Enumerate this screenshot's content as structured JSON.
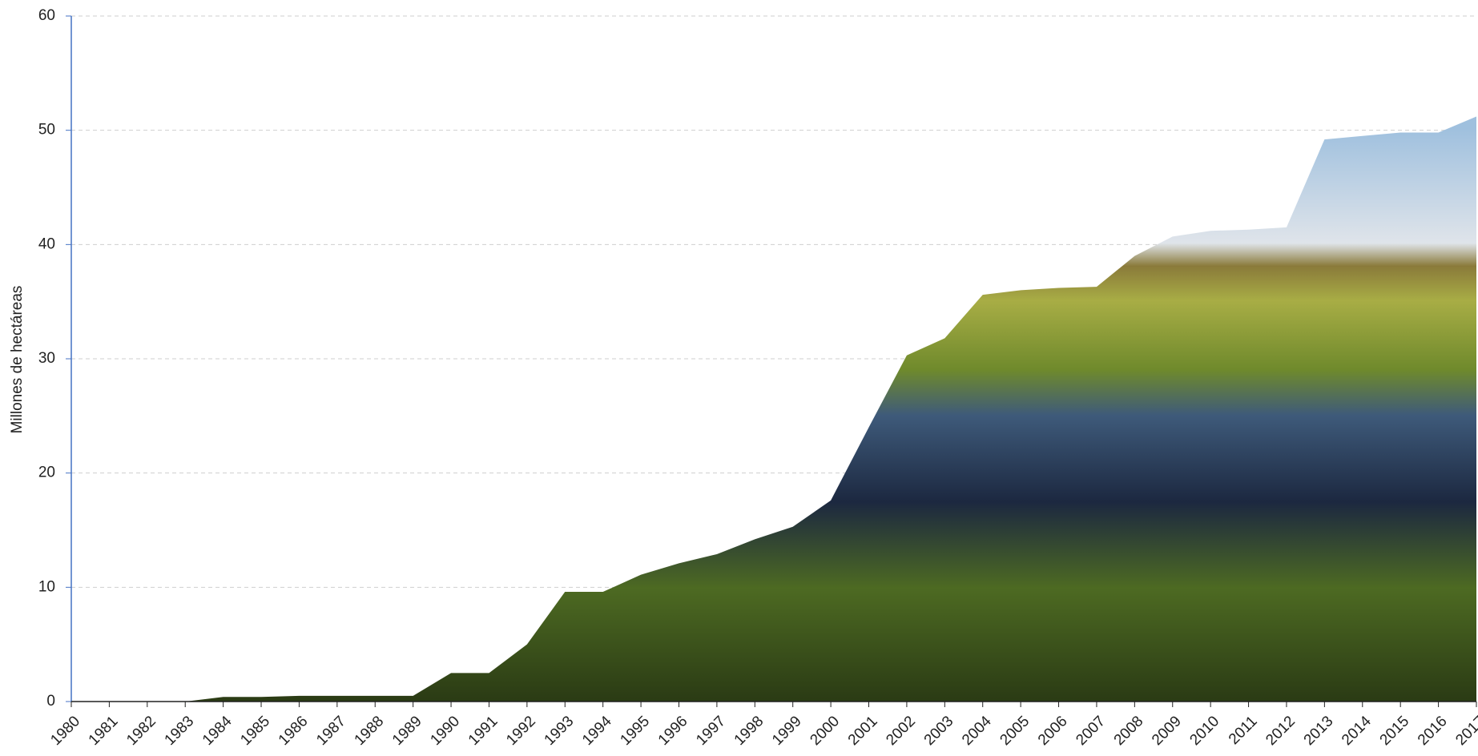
{
  "chart_data": {
    "type": "area",
    "y_label": "Millones de hectáreas",
    "categories": [
      "1980",
      "1981",
      "1982",
      "1983",
      "1984",
      "1985",
      "1986",
      "1987",
      "1988",
      "1989",
      "1990",
      "1991",
      "1992",
      "1993",
      "1994",
      "1995",
      "1996",
      "1997",
      "1998",
      "1999",
      "2000",
      "2001",
      "2002",
      "2003",
      "2004",
      "2005",
      "2006",
      "2007",
      "2008",
      "2009",
      "2010",
      "2011",
      "2012",
      "2013",
      "2014",
      "2015",
      "2016",
      "2017"
    ],
    "values": [
      0,
      0,
      0,
      0,
      0.4,
      0.4,
      0.5,
      0.5,
      0.5,
      0.5,
      2.5,
      2.5,
      5.0,
      9.6,
      9.6,
      11.1,
      12.1,
      12.9,
      14.2,
      15.3,
      17.6,
      24.0,
      30.3,
      31.8,
      35.6,
      36.0,
      36.2,
      36.3,
      39.0,
      40.7,
      41.2,
      41.3,
      41.5,
      49.2,
      49.5,
      49.8,
      49.8,
      51.2
    ],
    "ylim": [
      0,
      60
    ],
    "yticks": [
      0,
      10,
      20,
      30,
      40,
      50,
      60
    ],
    "grid": true
  }
}
